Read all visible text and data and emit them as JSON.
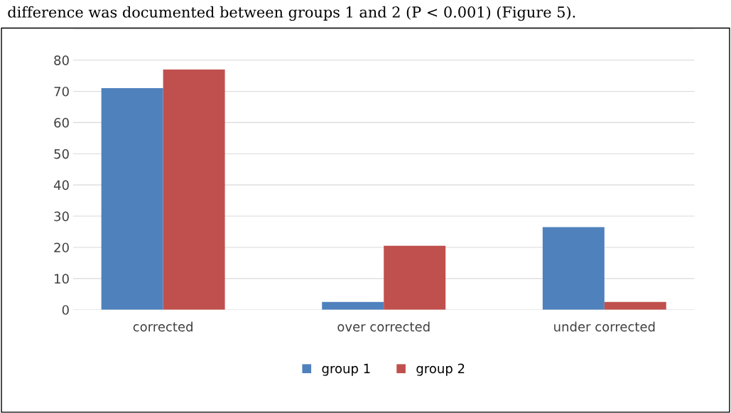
{
  "chart_data": {
    "type": "bar",
    "annotations": [
      "difference was documented between groups 1 and 2 (P < 0.001) (Figure 5)."
    ],
    "categories": [
      "corrected",
      "over corrected",
      "under corrected"
    ],
    "series": [
      {
        "name": "group 1",
        "color": "#4f81bd",
        "values": [
          71,
          2.5,
          26.5
        ]
      },
      {
        "name": "group 2",
        "color": "#c0504d",
        "values": [
          77,
          20.5,
          2.5
        ]
      }
    ],
    "ylim": [
      0,
      90
    ],
    "yticks": [
      0,
      10,
      20,
      30,
      40,
      50,
      60,
      70,
      80,
      {
        "value": 90,
        "label": null
      }
    ],
    "grid": "y",
    "legend": "bottom"
  }
}
